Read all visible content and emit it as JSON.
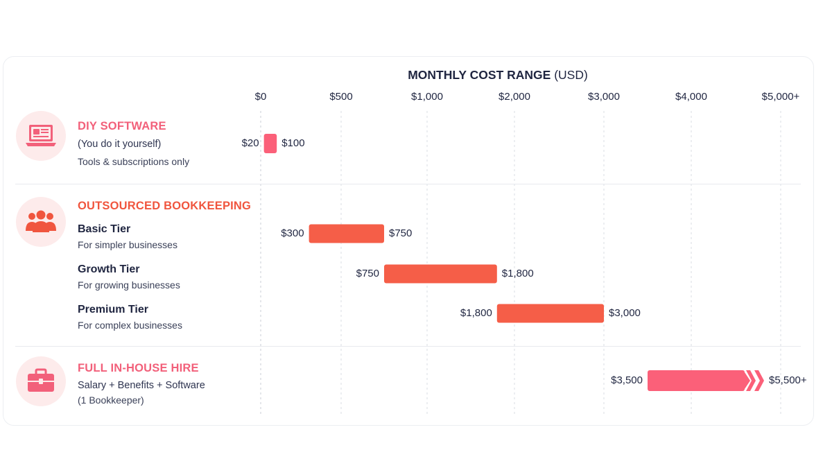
{
  "chart_data": {
    "type": "bar",
    "title": "MONTHLY COST RANGE",
    "title_unit": "(USD)",
    "tick_labels": [
      "$0",
      "$500",
      "$1,000",
      "$2,000",
      "$3,000",
      "$4,000",
      "$5,000+"
    ],
    "tick_values": [
      0,
      500,
      1000,
      2000,
      3000,
      4000,
      5000
    ],
    "grid": true,
    "groups": [
      {
        "name": "DIY SOFTWARE",
        "color": "#f2607a",
        "icon": "laptop-icon",
        "lines": [
          "(You do it yourself)",
          "Tools & subscriptions only"
        ],
        "bars": [
          {
            "label": "",
            "note": "",
            "min": 20,
            "max": 100,
            "min_label": "$20",
            "max_label": "$100",
            "color": "#fb6079"
          }
        ]
      },
      {
        "name": "OUTSOURCED BOOKKEEPING",
        "color": "#f0553e",
        "icon": "team-icon",
        "lines": [],
        "bars": [
          {
            "label": "Basic Tier",
            "note": "For simpler businesses",
            "min": 300,
            "max": 750,
            "min_label": "$300",
            "max_label": "$750",
            "color": "#f55e48"
          },
          {
            "label": "Growth Tier",
            "note": "For growing businesses",
            "min": 750,
            "max": 1800,
            "min_label": "$750",
            "max_label": "$1,800",
            "color": "#f55e48"
          },
          {
            "label": "Premium Tier",
            "note": "For complex businesses",
            "min": 1800,
            "max": 3000,
            "min_label": "$1,800",
            "max_label": "$3,000",
            "color": "#f55e48"
          }
        ]
      },
      {
        "name": "FULL IN-HOUSE HIRE",
        "color": "#f2607a",
        "icon": "briefcase-icon",
        "lines": [
          "Salary + Benefits + Software",
          "(1 Bookkeeper)"
        ],
        "bars": [
          {
            "label": "",
            "note": "",
            "min": 3500,
            "max": 5500,
            "min_label": "$3,500",
            "max_label": "$5,500+",
            "color": "#fb6079"
          }
        ]
      }
    ]
  }
}
